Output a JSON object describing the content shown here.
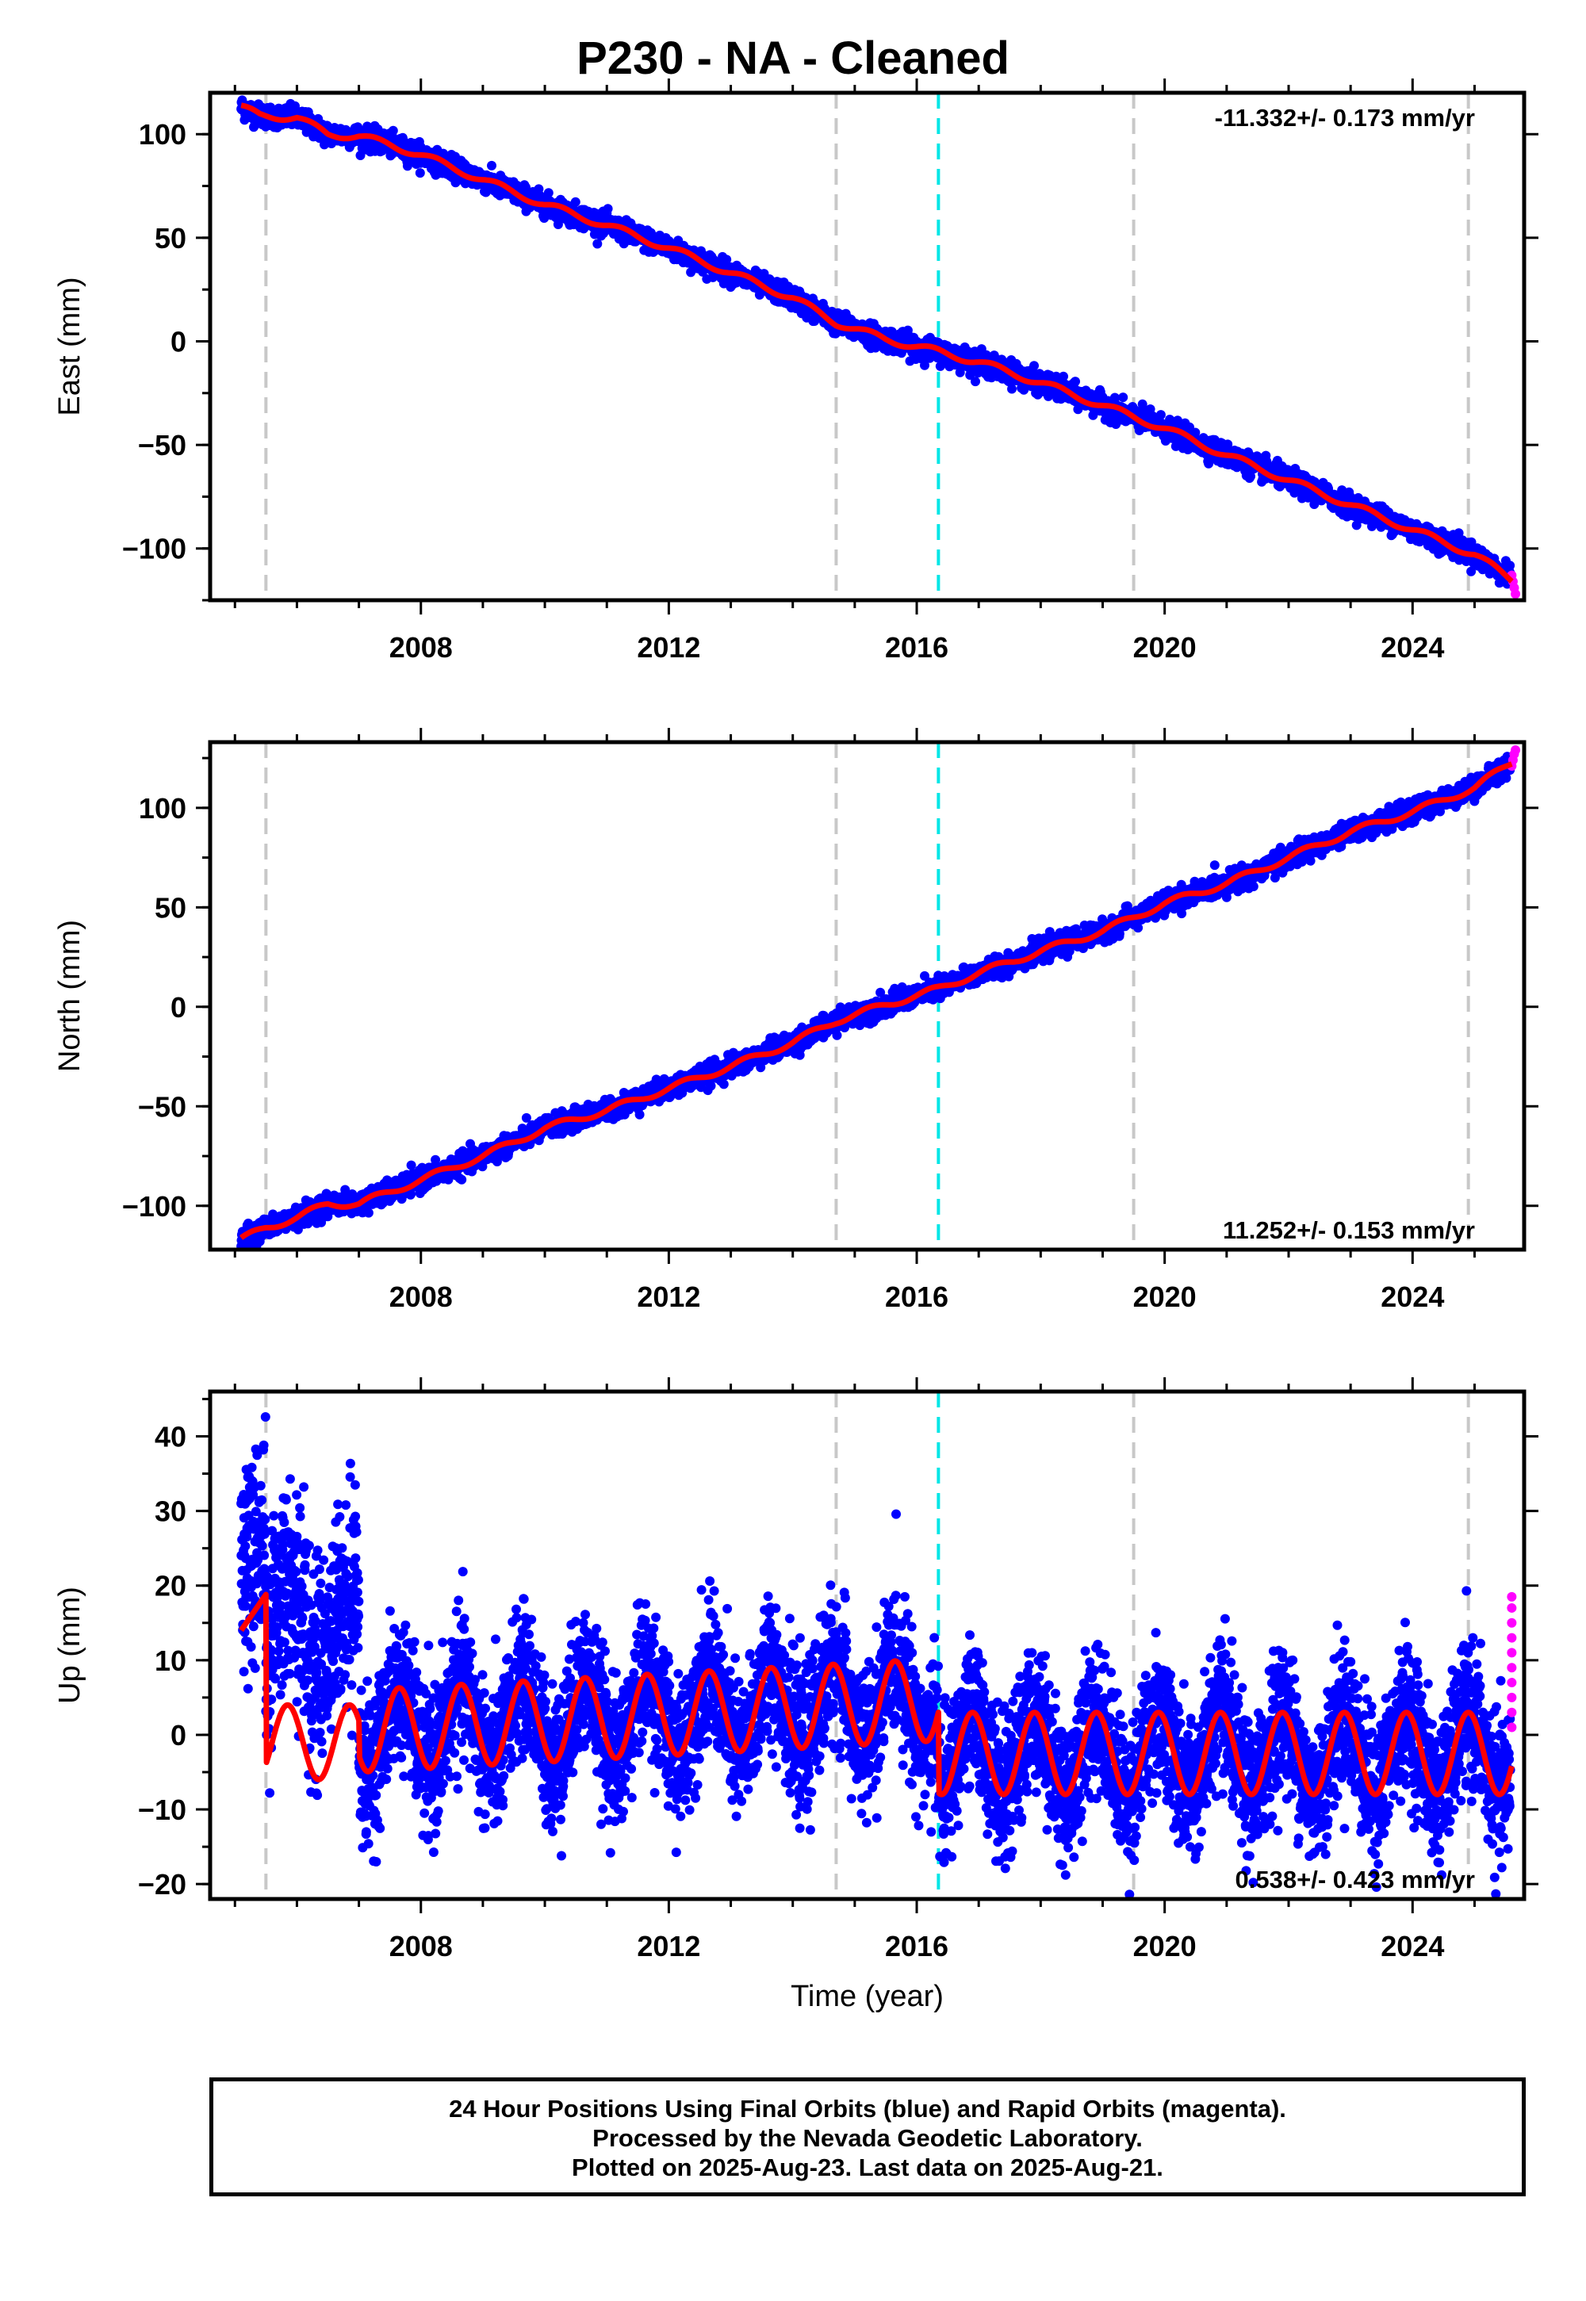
{
  "title": "P230  - NA - Cleaned",
  "colors": {
    "final": "#0000ff",
    "rapid": "#ff00ff",
    "model": "#ff0000",
    "dashed_gray": "#c8c8c8",
    "dashed_cyan": "#00e6e6"
  },
  "footer": {
    "line1": "24 Hour Positions Using Final Orbits (blue) and Rapid Orbits (magenta).",
    "line2": "Processed by the Nevada Geodetic Laboratory.",
    "line3": "Plotted on 2025-Aug-23. Last data on 2025-Aug-21."
  },
  "chart_data": [
    {
      "type": "scatter",
      "ylabel": "East (mm)",
      "xlabel": "",
      "xlim": [
        2004.6,
        2025.8
      ],
      "ylim": [
        -125,
        120
      ],
      "x_ticks": [
        2008,
        2012,
        2016,
        2020,
        2024
      ],
      "y_ticks": [
        -100,
        -50,
        0,
        50,
        100
      ],
      "rate_label": "-11.332+/- 0.173 mm/yr",
      "rate_position": "top-right",
      "gray_dashed_lines": [
        2005.5,
        2014.7,
        2019.5,
        2024.9
      ],
      "cyan_dashed_lines": [
        2016.35
      ],
      "model_points": [
        [
          2005.1,
          113
        ],
        [
          2005.4,
          109
        ],
        [
          2006.0,
          108
        ],
        [
          2006.5,
          100
        ],
        [
          2007.0,
          99
        ],
        [
          2007.5,
          95
        ],
        [
          2008,
          90
        ],
        [
          2009,
          78
        ],
        [
          2010,
          66
        ],
        [
          2011,
          56
        ],
        [
          2012,
          45
        ],
        [
          2013,
          33
        ],
        [
          2014,
          21
        ],
        [
          2014.7,
          9
        ],
        [
          2015.5,
          1
        ],
        [
          2016.35,
          -5
        ],
        [
          2017,
          -10
        ],
        [
          2018,
          -20
        ],
        [
          2019,
          -31
        ],
        [
          2020,
          -42
        ],
        [
          2021,
          -55
        ],
        [
          2022,
          -67
        ],
        [
          2023,
          -79
        ],
        [
          2024,
          -91
        ],
        [
          2025,
          -103
        ],
        [
          2025.6,
          -115
        ]
      ],
      "rapid_points": [
        [
          2025.6,
          -113
        ],
        [
          2025.62,
          -116
        ],
        [
          2025.64,
          -119
        ],
        [
          2025.66,
          -122
        ]
      ]
    },
    {
      "type": "scatter",
      "ylabel": "North (mm)",
      "xlabel": "",
      "xlim": [
        2004.6,
        2025.8
      ],
      "ylim": [
        -122,
        133
      ],
      "x_ticks": [
        2008,
        2012,
        2016,
        2020,
        2024
      ],
      "y_ticks": [
        -100,
        -50,
        0,
        50,
        100
      ],
      "rate_label": "11.252+/- 0.153 mm/yr",
      "rate_position": "bottom-right",
      "gray_dashed_lines": [
        2005.5,
        2014.7,
        2019.5,
        2024.9
      ],
      "cyan_dashed_lines": [
        2016.35
      ],
      "model_points": [
        [
          2005.1,
          -117
        ],
        [
          2005.5,
          -111
        ],
        [
          2006,
          -106
        ],
        [
          2006.5,
          -99
        ],
        [
          2007,
          -99
        ],
        [
          2008,
          -87
        ],
        [
          2009,
          -75
        ],
        [
          2010,
          -61
        ],
        [
          2011,
          -52
        ],
        [
          2012,
          -41
        ],
        [
          2013,
          -30
        ],
        [
          2014,
          -18
        ],
        [
          2014.7,
          -7
        ],
        [
          2015.5,
          1
        ],
        [
          2016.35,
          9
        ],
        [
          2017,
          17
        ],
        [
          2018,
          28
        ],
        [
          2019,
          38
        ],
        [
          2020,
          52
        ],
        [
          2021,
          62
        ],
        [
          2022,
          75
        ],
        [
          2023,
          88
        ],
        [
          2024,
          98
        ],
        [
          2025,
          110
        ],
        [
          2025.6,
          123
        ]
      ],
      "rapid_points": [
        [
          2025.6,
          121
        ],
        [
          2025.62,
          124
        ],
        [
          2025.64,
          127
        ],
        [
          2025.66,
          129
        ]
      ]
    },
    {
      "type": "scatter",
      "ylabel": "Up (mm)",
      "xlabel": "Time (year)",
      "xlim": [
        2004.6,
        2025.8
      ],
      "ylim": [
        -22,
        46
      ],
      "x_ticks": [
        2008,
        2012,
        2016,
        2020,
        2024
      ],
      "y_ticks": [
        -20,
        -10,
        0,
        10,
        20,
        30,
        40
      ],
      "rate_label": "0.538+/- 0.423 mm/yr",
      "rate_position": "bottom-right",
      "gray_dashed_lines": [
        2005.5,
        2014.7,
        2019.5,
        2024.9
      ],
      "cyan_dashed_lines": [
        2016.35
      ],
      "seasonal_amplitude": 5.5,
      "rapid_points": [
        [
          2025.6,
          18.5
        ],
        [
          2025.6,
          17
        ],
        [
          2025.6,
          15
        ],
        [
          2025.6,
          13
        ],
        [
          2025.6,
          11
        ],
        [
          2025.6,
          9
        ],
        [
          2025.6,
          7
        ],
        [
          2025.6,
          5
        ],
        [
          2025.6,
          3
        ],
        [
          2025.6,
          1
        ]
      ]
    }
  ]
}
